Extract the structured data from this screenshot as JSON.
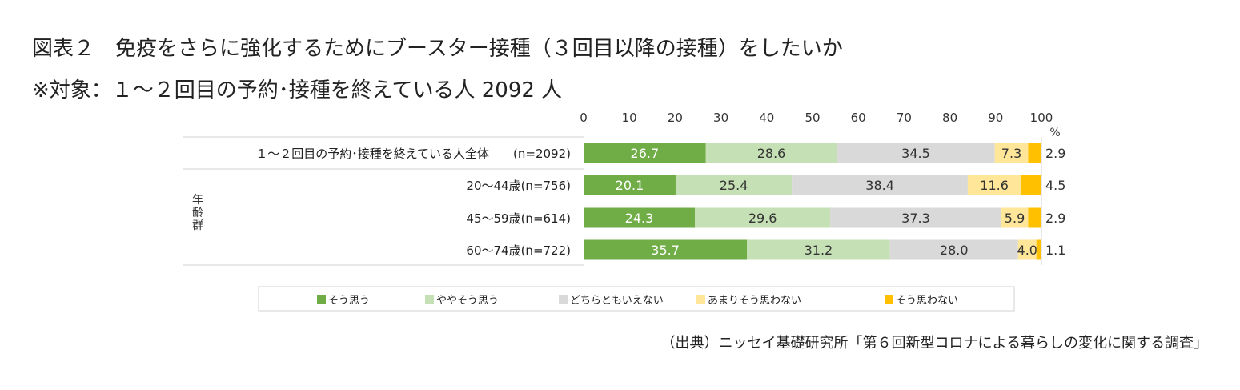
{
  "title": "図表２　免疫をさらに強化するためにブースター接種（３回目以降の接種）をしたいか",
  "subtitle": "※対象：１～２回目の予約･接種を終えている人  2092 人",
  "source": "（出典）ニッセイ基礎研究所「第６回新型コロナによる暮らしの変化に関する調査」",
  "chart_data": {
    "type": "bar",
    "orientation": "horizontal",
    "stacked": "100%",
    "unit": "%",
    "xlim": [
      0,
      100
    ],
    "x_ticks": [
      0,
      10,
      20,
      30,
      40,
      50,
      60,
      70,
      80,
      90,
      100
    ],
    "group_label": "年齢群",
    "categories": [
      "１～２回目の予約･接種を終えている人全体　　(n=2092)",
      "20～44歳(n=756)",
      "45～59歳(n=614)",
      "60～74歳(n=722)"
    ],
    "series": [
      {
        "name": "そう思う",
        "color": "#70ad47",
        "values": [
          26.7,
          20.1,
          24.3,
          35.7
        ]
      },
      {
        "name": "ややそう思う",
        "color": "#c5e0b4",
        "values": [
          28.6,
          25.4,
          29.6,
          31.2
        ]
      },
      {
        "name": "どちらともいえない",
        "color": "#d9d9d9",
        "values": [
          34.5,
          38.4,
          37.3,
          28.0
        ]
      },
      {
        "name": "あまりそう思わない",
        "color": "#ffe699",
        "values": [
          7.3,
          11.6,
          5.9,
          4.0
        ]
      },
      {
        "name": "そう思わない",
        "color": "#ffc000",
        "values": [
          2.9,
          4.5,
          2.9,
          1.1
        ]
      }
    ],
    "legend_position": "bottom",
    "grid": false
  }
}
